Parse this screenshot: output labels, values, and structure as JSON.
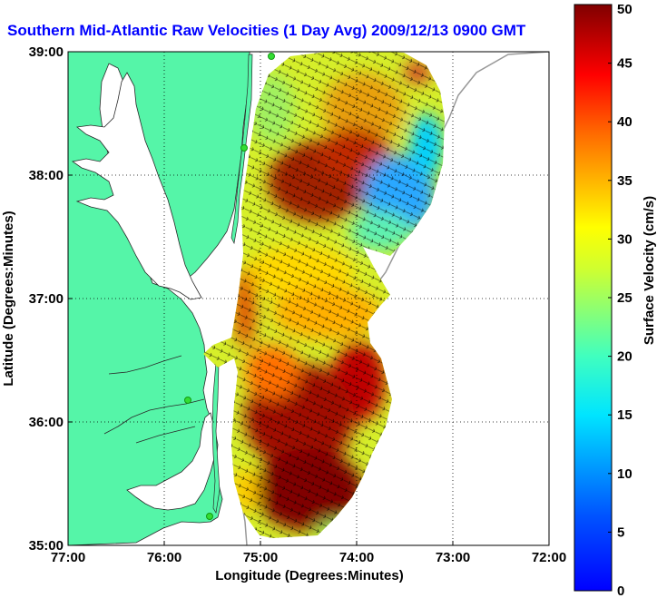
{
  "title": "Southern Mid-Atlantic Raw Velocities (1 Day Avg) 2009/12/13 0900 GMT",
  "map": {
    "xlabel": "Longitude (Degrees:Minutes)",
    "ylabel": "Latitude (Degrees:Minutes)",
    "xticks": [
      "77:00",
      "76:00",
      "75:00",
      "74:00",
      "73:00",
      "72:00"
    ],
    "xtick_values": [
      -77,
      -76,
      -75,
      -74,
      -73,
      -72
    ],
    "yticks": [
      "39:00",
      "38:00",
      "37:00",
      "36:00",
      "35:00"
    ],
    "ytick_values": [
      39,
      38,
      37,
      36,
      35
    ],
    "lon_range": [
      -77,
      -72
    ],
    "lat_range": [
      35,
      39
    ],
    "grid": "dotted",
    "land_color": "#55f5a8",
    "station_color": "#33dd33"
  },
  "colorbar": {
    "label": "Surface Velocity (cm/s)",
    "ticks": [
      "50",
      "45",
      "40",
      "35",
      "30",
      "25",
      "20",
      "15",
      "10",
      "5",
      "0"
    ],
    "range": [
      0,
      50
    ],
    "colormap": "jet"
  }
}
